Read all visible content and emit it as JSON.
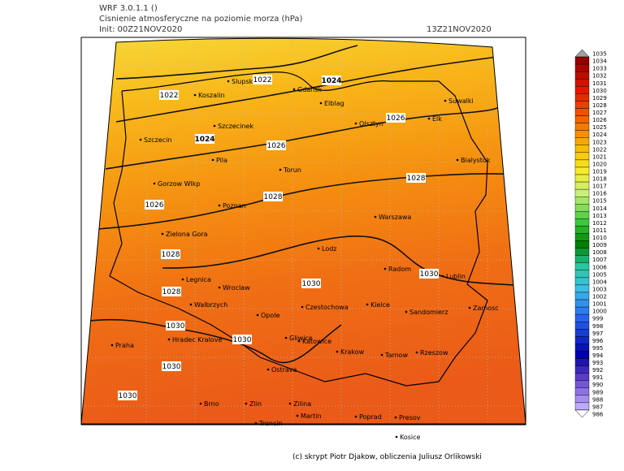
{
  "header": {
    "model": "WRF 3.0.1.1 ()",
    "title": "Cisnienie atmosferyczne na poziomie morza (hPa)",
    "init": "Init: 00Z21NOV2020",
    "valid": "13Z21NOV2020"
  },
  "map": {
    "cities": [
      "Slupsk",
      "Koszalin",
      "Gdansk",
      "Elblag",
      "Suwalki",
      "Olsztyn",
      "Elk",
      "Szczecin",
      "Szczecinek",
      "Pila",
      "Torun",
      "Bialystok",
      "Gorzow Wlkp",
      "Poznan",
      "Warszawa",
      "Zielona Gora",
      "Lodz",
      "Radom",
      "Lublin",
      "Legnica",
      "Wroclaw",
      "Walbrzych",
      "Opole",
      "Czestochowa",
      "Kielce",
      "Sandomierz",
      "Zamosc",
      "Praha",
      "Hradec Kralove",
      "Gliwice",
      "Katowice",
      "Krakow",
      "Tarnow",
      "Rzeszow",
      "Ostrava",
      "Brno",
      "Zlin",
      "Zilina",
      "Martin",
      "Poprad",
      "Presov",
      "Trencin",
      "Kosice"
    ],
    "isobar_labels": [
      1022,
      1024,
      1022,
      1026,
      1024,
      1026,
      1028,
      1028,
      1026,
      1028,
      1030,
      1030,
      1028,
      1030,
      1030,
      1030,
      1030
    ]
  },
  "colorbar": {
    "levels": [
      1035,
      1034,
      1033,
      1032,
      1031,
      1030,
      1029,
      1028,
      1027,
      1026,
      1025,
      1024,
      1023,
      1022,
      1021,
      1020,
      1019,
      1018,
      1017,
      1016,
      1015,
      1014,
      1013,
      1012,
      1011,
      1010,
      1009,
      1008,
      1007,
      1006,
      1005,
      1004,
      1003,
      1002,
      1001,
      1000,
      999,
      998,
      997,
      996,
      995,
      994,
      993,
      992,
      991,
      990,
      989,
      988,
      987,
      986
    ]
  },
  "footer": "(c) skrypt Piotr Djakow, obliczenia Juliusz Orlikowski"
}
